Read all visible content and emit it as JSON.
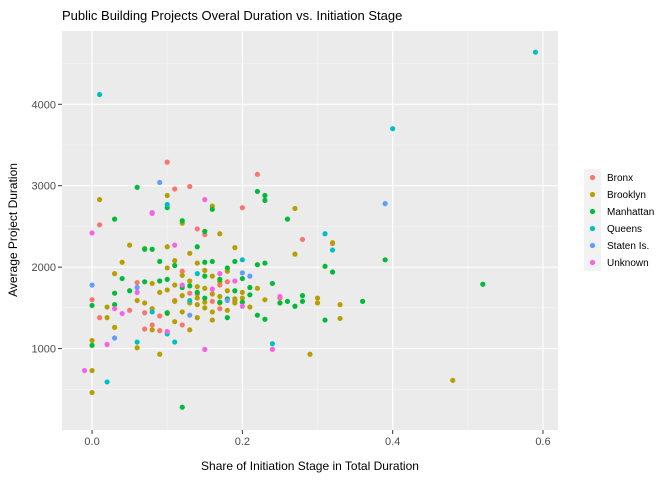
{
  "chart_data": {
    "type": "scatter",
    "title": "Public Building Projects Overal Duration vs. Initiation Stage",
    "xlabel": "Share of Initiation Stage in Total Duration",
    "ylabel": "Average Project Duration",
    "xlim": [
      -0.04,
      0.62
    ],
    "ylim": [
      0,
      4900
    ],
    "x_ticks": [
      0.0,
      0.2,
      0.4,
      0.6
    ],
    "x_tick_labels": [
      "0.0",
      "0.2",
      "0.4",
      "0.6"
    ],
    "y_ticks": [
      1000,
      2000,
      3000,
      4000
    ],
    "y_tick_labels": [
      "1000",
      "2000",
      "3000",
      "4000"
    ],
    "grid": true,
    "legend_position": "right",
    "legend_title": "",
    "series": [
      {
        "name": "Bronx",
        "color": "#F8766D",
        "points": [
          [
            0.0,
            1600
          ],
          [
            0.01,
            2520
          ],
          [
            0.01,
            1380
          ],
          [
            0.06,
            1810
          ],
          [
            0.07,
            1440
          ],
          [
            0.08,
            1290
          ],
          [
            0.09,
            1400
          ],
          [
            0.09,
            1220
          ],
          [
            0.1,
            3290
          ],
          [
            0.11,
            2960
          ],
          [
            0.12,
            1950
          ],
          [
            0.13,
            2990
          ],
          [
            0.14,
            2470
          ],
          [
            0.14,
            1670
          ],
          [
            0.15,
            2400
          ],
          [
            0.16,
            1580
          ],
          [
            0.17,
            1490
          ],
          [
            0.18,
            1820
          ],
          [
            0.19,
            1590
          ],
          [
            0.2,
            2730
          ],
          [
            0.22,
            3140
          ],
          [
            0.25,
            1620
          ],
          [
            0.28,
            2340
          ],
          [
            0.32,
            2290
          ],
          [
            0.12,
            1290
          ],
          [
            0.13,
            1680
          ],
          [
            0.07,
            1240
          ],
          [
            0.05,
            1470
          ],
          [
            0.11,
            1590
          ],
          [
            0.17,
            1780
          ]
        ]
      },
      {
        "name": "Brooklyn",
        "color": "#B79F00",
        "points": [
          [
            0.0,
            460
          ],
          [
            0.0,
            730
          ],
          [
            0.0,
            1100
          ],
          [
            0.01,
            2830
          ],
          [
            0.02,
            1510
          ],
          [
            0.02,
            1380
          ],
          [
            0.03,
            1920
          ],
          [
            0.03,
            1260
          ],
          [
            0.04,
            2060
          ],
          [
            0.05,
            2270
          ],
          [
            0.06,
            1590
          ],
          [
            0.06,
            1010
          ],
          [
            0.07,
            2230
          ],
          [
            0.08,
            1800
          ],
          [
            0.08,
            1230
          ],
          [
            0.09,
            1690
          ],
          [
            0.09,
            930
          ],
          [
            0.1,
            2880
          ],
          [
            0.1,
            2250
          ],
          [
            0.1,
            1990
          ],
          [
            0.1,
            1720
          ],
          [
            0.11,
            2080
          ],
          [
            0.11,
            1580
          ],
          [
            0.11,
            1330
          ],
          [
            0.12,
            2540
          ],
          [
            0.12,
            1900
          ],
          [
            0.12,
            1450
          ],
          [
            0.13,
            2170
          ],
          [
            0.13,
            1830
          ],
          [
            0.13,
            1560
          ],
          [
            0.14,
            2050
          ],
          [
            0.14,
            1760
          ],
          [
            0.14,
            1620
          ],
          [
            0.14,
            1380
          ],
          [
            0.15,
            1960
          ],
          [
            0.15,
            1740
          ],
          [
            0.15,
            1570
          ],
          [
            0.16,
            2750
          ],
          [
            0.16,
            1890
          ],
          [
            0.16,
            1670
          ],
          [
            0.16,
            1350
          ],
          [
            0.17,
            2410
          ],
          [
            0.17,
            1820
          ],
          [
            0.17,
            1640
          ],
          [
            0.18,
            1950
          ],
          [
            0.18,
            1710
          ],
          [
            0.18,
            1470
          ],
          [
            0.19,
            2240
          ],
          [
            0.19,
            1560
          ],
          [
            0.2,
            1690
          ],
          [
            0.21,
            1510
          ],
          [
            0.22,
            1740
          ],
          [
            0.23,
            1600
          ],
          [
            0.25,
            1560
          ],
          [
            0.27,
            2720
          ],
          [
            0.27,
            2160
          ],
          [
            0.29,
            930
          ],
          [
            0.3,
            1620
          ],
          [
            0.3,
            1560
          ],
          [
            0.32,
            2300
          ],
          [
            0.33,
            1370
          ],
          [
            0.33,
            1540
          ],
          [
            0.48,
            610
          ],
          [
            0.07,
            1560
          ],
          [
            0.12,
            1650
          ],
          [
            0.15,
            1500
          ],
          [
            0.1,
            1430
          ],
          [
            0.13,
            1230
          ],
          [
            0.16,
            1450
          ],
          [
            0.19,
            1610
          ],
          [
            0.08,
            1490
          ],
          [
            0.11,
            1780
          ],
          [
            0.14,
            1540
          ],
          [
            0.17,
            1560
          ],
          [
            0.2,
            1620
          ]
        ]
      },
      {
        "name": "Manhattan",
        "color": "#00BA38",
        "points": [
          [
            0.0,
            1530
          ],
          [
            0.0,
            1040
          ],
          [
            0.03,
            2590
          ],
          [
            0.03,
            1680
          ],
          [
            0.03,
            1540
          ],
          [
            0.04,
            1860
          ],
          [
            0.05,
            1710
          ],
          [
            0.06,
            2980
          ],
          [
            0.07,
            2220
          ],
          [
            0.07,
            1820
          ],
          [
            0.08,
            2220
          ],
          [
            0.09,
            2070
          ],
          [
            0.09,
            1830
          ],
          [
            0.1,
            2730
          ],
          [
            0.1,
            1850
          ],
          [
            0.1,
            1440
          ],
          [
            0.11,
            2020
          ],
          [
            0.12,
            2570
          ],
          [
            0.12,
            280
          ],
          [
            0.13,
            1770
          ],
          [
            0.14,
            2250
          ],
          [
            0.15,
            2440
          ],
          [
            0.15,
            2060
          ],
          [
            0.15,
            1890
          ],
          [
            0.15,
            1620
          ],
          [
            0.16,
            2710
          ],
          [
            0.16,
            2070
          ],
          [
            0.17,
            1850
          ],
          [
            0.17,
            1570
          ],
          [
            0.18,
            1990
          ],
          [
            0.18,
            1610
          ],
          [
            0.18,
            1380
          ],
          [
            0.19,
            2070
          ],
          [
            0.19,
            1710
          ],
          [
            0.2,
            1860
          ],
          [
            0.2,
            1570
          ],
          [
            0.21,
            1750
          ],
          [
            0.22,
            2930
          ],
          [
            0.22,
            2030
          ],
          [
            0.22,
            1410
          ],
          [
            0.23,
            2880
          ],
          [
            0.23,
            2820
          ],
          [
            0.23,
            2050
          ],
          [
            0.23,
            1360
          ],
          [
            0.24,
            1800
          ],
          [
            0.25,
            1560
          ],
          [
            0.26,
            2590
          ],
          [
            0.26,
            1580
          ],
          [
            0.27,
            1520
          ],
          [
            0.28,
            1650
          ],
          [
            0.28,
            1580
          ],
          [
            0.31,
            2010
          ],
          [
            0.31,
            1350
          ],
          [
            0.32,
            1940
          ],
          [
            0.36,
            1580
          ],
          [
            0.39,
            2090
          ],
          [
            0.52,
            1790
          ],
          [
            0.14,
            1690
          ],
          [
            0.12,
            1750
          ],
          [
            0.21,
            1660
          ]
        ]
      },
      {
        "name": "Queens",
        "color": "#00BFC4",
        "points": [
          [
            0.01,
            4120
          ],
          [
            0.02,
            590
          ],
          [
            0.06,
            1080
          ],
          [
            0.08,
            1450
          ],
          [
            0.1,
            2770
          ],
          [
            0.1,
            1180
          ],
          [
            0.11,
            1080
          ],
          [
            0.13,
            1590
          ],
          [
            0.2,
            2090
          ],
          [
            0.24,
            1060
          ],
          [
            0.31,
            2410
          ],
          [
            0.32,
            2210
          ],
          [
            0.4,
            3700
          ],
          [
            0.59,
            4640
          ],
          [
            0.14,
            1920
          ]
        ]
      },
      {
        "name": "Staten Is.",
        "color": "#619CFF",
        "points": [
          [
            0.0,
            1780
          ],
          [
            0.03,
            1130
          ],
          [
            0.09,
            3040
          ],
          [
            0.13,
            1410
          ],
          [
            0.18,
            1590
          ],
          [
            0.2,
            1930
          ],
          [
            0.21,
            1890
          ],
          [
            0.39,
            2780
          ],
          [
            0.06,
            1750
          ]
        ]
      },
      {
        "name": "Unknown",
        "color": "#F564E3",
        "points": [
          [
            -0.01,
            730
          ],
          [
            0.0,
            2420
          ],
          [
            0.02,
            1050
          ],
          [
            0.03,
            1490
          ],
          [
            0.06,
            1690
          ],
          [
            0.08,
            2660
          ],
          [
            0.08,
            2670
          ],
          [
            0.1,
            1210
          ],
          [
            0.11,
            2270
          ],
          [
            0.12,
            1780
          ],
          [
            0.15,
            2830
          ],
          [
            0.15,
            990
          ],
          [
            0.17,
            1920
          ],
          [
            0.19,
            1830
          ],
          [
            0.2,
            1520
          ],
          [
            0.24,
            990
          ],
          [
            0.25,
            1640
          ],
          [
            0.16,
            1730
          ],
          [
            0.04,
            1430
          ]
        ]
      }
    ]
  }
}
